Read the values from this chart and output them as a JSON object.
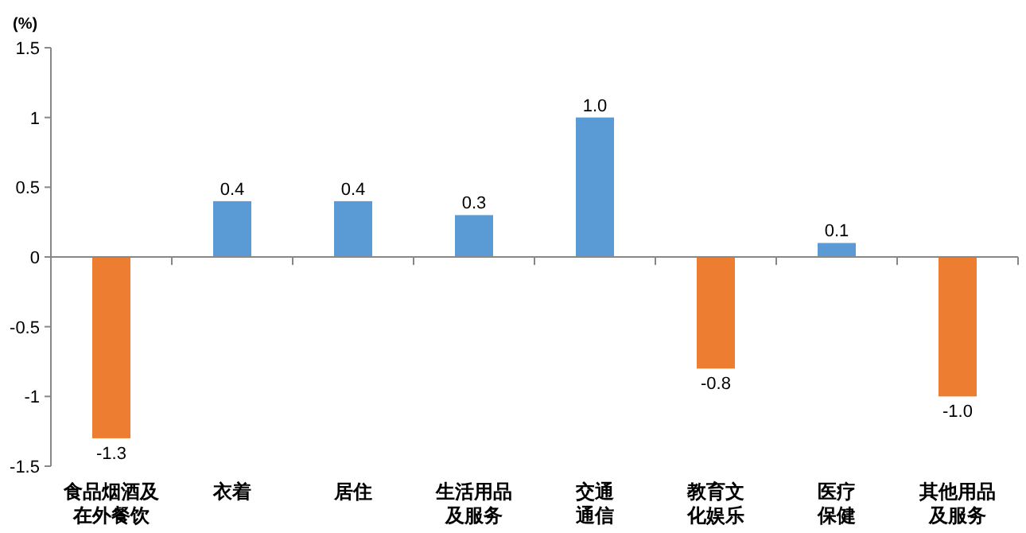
{
  "chart_data": {
    "type": "bar",
    "ylabel": "(%)",
    "categories": [
      "食品烟酒及在外餐饮",
      "衣着",
      "居住",
      "生活用品及服务",
      "交通通信",
      "教育文化娱乐",
      "医疗保健",
      "其他用品及服务"
    ],
    "values": [
      -1.3,
      0.4,
      0.4,
      0.3,
      1.0,
      -0.8,
      0.1,
      -1.0
    ],
    "value_labels": [
      "-1.3",
      "0.4",
      "0.4",
      "0.3",
      "1.0",
      "-0.8",
      "0.1",
      "-1.0"
    ],
    "colors": [
      "#ed7d31",
      "#5b9bd5",
      "#5b9bd5",
      "#5b9bd5",
      "#5b9bd5",
      "#ed7d31",
      "#5b9bd5",
      "#ed7d31"
    ],
    "ylim": [
      -1.5,
      1.5
    ],
    "yticks": [
      1.5,
      1,
      0.5,
      0,
      -0.5,
      -1,
      -1.5
    ]
  }
}
